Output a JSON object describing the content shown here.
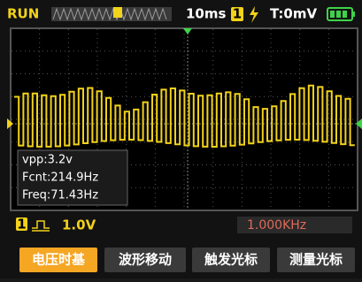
{
  "status_bar": {
    "mode": "RUN",
    "timebase": "10ms",
    "channel": "1",
    "trigger_level": "T:0mV"
  },
  "measurements": [
    "vpp:3.2v",
    "Fcnt:214.9Hz",
    "Freq:71.43Hz"
  ],
  "channel_info": {
    "channel": "1",
    "volts_per_div": "1.0V"
  },
  "signal_frequency": "1.000KHz",
  "buttons": [
    "电压时基",
    "波形移动",
    "触发光标",
    "测量光标"
  ]
}
